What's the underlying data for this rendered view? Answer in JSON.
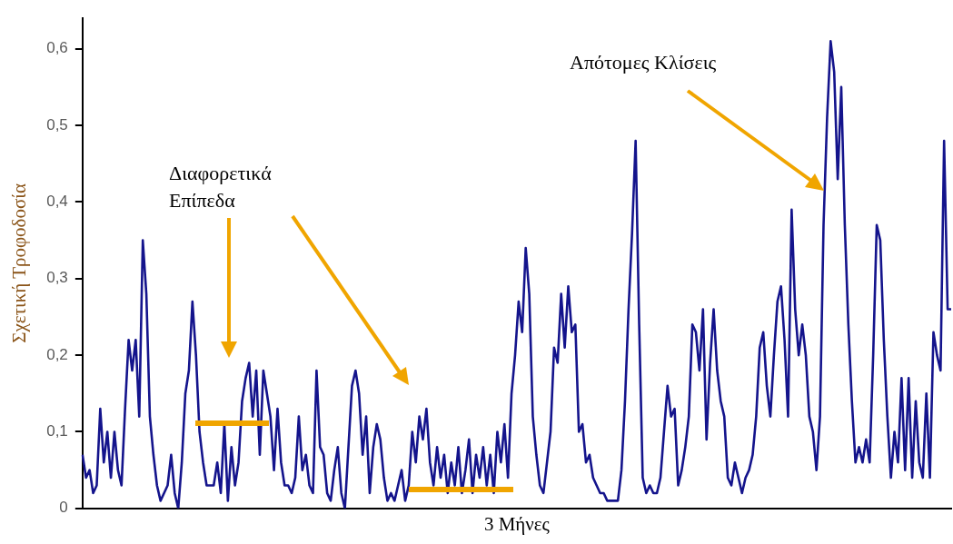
{
  "chart_data": {
    "type": "line",
    "xlabel": "3 Μήνες",
    "ylabel": "Σχετική Τροφοδοσία",
    "annotations": [
      "Διαφορετικά Επίπεδα",
      "Απότομες Κλίσεις"
    ],
    "categories": [
      null,
      null,
      null,
      null,
      null,
      null,
      null,
      null,
      null,
      null,
      null,
      null,
      null,
      null,
      null,
      null,
      null,
      null,
      null,
      null,
      null,
      null,
      null,
      null,
      null,
      null,
      null,
      null,
      null,
      null,
      null,
      null,
      null,
      null,
      null,
      null,
      null,
      null,
      null,
      null,
      null,
      null,
      null,
      null,
      null,
      null,
      null,
      null,
      null,
      null,
      null,
      null,
      null,
      null,
      null,
      null,
      null,
      null,
      null,
      null,
      null,
      null,
      null,
      null,
      null,
      null,
      null,
      null,
      null,
      null,
      null,
      null,
      null,
      null,
      null,
      null,
      null,
      null,
      null,
      null,
      null,
      null,
      null,
      null,
      null,
      null,
      null,
      null,
      null,
      null,
      null,
      null,
      null,
      null,
      null,
      null,
      null,
      null,
      null,
      null,
      null,
      null,
      null,
      null,
      null,
      null,
      null,
      null,
      null,
      null,
      null,
      null,
      null,
      null,
      null,
      null,
      null,
      null,
      null,
      null,
      null,
      null,
      null,
      null,
      null,
      null,
      null,
      null,
      null,
      null,
      null,
      null,
      null,
      null,
      null,
      null,
      null,
      null,
      null,
      null,
      null,
      null,
      null,
      null,
      null,
      null,
      null,
      null,
      null,
      null,
      null,
      null,
      null,
      null,
      null,
      null,
      null,
      null,
      null,
      null,
      null,
      null,
      null,
      null,
      null,
      null,
      null,
      null,
      null,
      null,
      null,
      null,
      null,
      null,
      null,
      null,
      null,
      null,
      null,
      null,
      null,
      null,
      null,
      null,
      null,
      null,
      null,
      null,
      null,
      null,
      null,
      null,
      null,
      null,
      null,
      null,
      null,
      null,
      null,
      null,
      null,
      null,
      null,
      null,
      null,
      null,
      null,
      null,
      null,
      null,
      null,
      null,
      null,
      null,
      null,
      null,
      null,
      null,
      null,
      null,
      null,
      null,
      null,
      null,
      null,
      null,
      null,
      null,
      null,
      null,
      null,
      null,
      null,
      null,
      null,
      null,
      null,
      null,
      null,
      null,
      null,
      null,
      null,
      null,
      null,
      null
    ],
    "series": [
      {
        "color": "#14148c",
        "values": [
          0.07,
          0.04,
          0.05,
          0.02,
          0.03,
          0.13,
          0.06,
          0.1,
          0.04,
          0.1,
          0.05,
          0.03,
          0.13,
          0.22,
          0.18,
          0.22,
          0.12,
          0.35,
          0.28,
          0.12,
          0.07,
          0.03,
          0.01,
          0.02,
          0.03,
          0.07,
          0.02,
          0.0,
          0.06,
          0.15,
          0.18,
          0.27,
          0.2,
          0.1,
          0.06,
          0.03,
          0.03,
          0.03,
          0.06,
          0.02,
          0.11,
          0.01,
          0.08,
          0.03,
          0.06,
          0.14,
          0.17,
          0.19,
          0.12,
          0.18,
          0.07,
          0.18,
          0.15,
          0.12,
          0.05,
          0.13,
          0.06,
          0.03,
          0.03,
          0.02,
          0.04,
          0.12,
          0.05,
          0.07,
          0.03,
          0.02,
          0.18,
          0.08,
          0.07,
          0.02,
          0.01,
          0.05,
          0.08,
          0.02,
          0.0,
          0.08,
          0.16,
          0.18,
          0.15,
          0.07,
          0.12,
          0.02,
          0.08,
          0.11,
          0.09,
          0.04,
          0.01,
          0.02,
          0.01,
          0.03,
          0.05,
          0.01,
          0.03,
          0.1,
          0.06,
          0.12,
          0.09,
          0.13,
          0.06,
          0.03,
          0.08,
          0.04,
          0.07,
          0.02,
          0.06,
          0.03,
          0.08,
          0.02,
          0.05,
          0.09,
          0.02,
          0.07,
          0.04,
          0.08,
          0.03,
          0.07,
          0.02,
          0.1,
          0.06,
          0.11,
          0.04,
          0.15,
          0.2,
          0.27,
          0.23,
          0.34,
          0.28,
          0.12,
          0.07,
          0.03,
          0.02,
          0.06,
          0.1,
          0.21,
          0.19,
          0.28,
          0.21,
          0.29,
          0.23,
          0.24,
          0.1,
          0.11,
          0.06,
          0.07,
          0.04,
          0.03,
          0.02,
          0.02,
          0.01,
          0.01,
          0.01,
          0.01,
          0.05,
          0.14,
          0.26,
          0.36,
          0.48,
          0.24,
          0.04,
          0.02,
          0.03,
          0.02,
          0.02,
          0.04,
          0.1,
          0.16,
          0.12,
          0.13,
          0.03,
          0.05,
          0.08,
          0.12,
          0.24,
          0.23,
          0.18,
          0.26,
          0.09,
          0.19,
          0.26,
          0.18,
          0.14,
          0.12,
          0.04,
          0.03,
          0.06,
          0.04,
          0.02,
          0.04,
          0.05,
          0.07,
          0.12,
          0.21,
          0.23,
          0.16,
          0.12,
          0.2,
          0.27,
          0.29,
          0.22,
          0.12,
          0.39,
          0.26,
          0.2,
          0.24,
          0.2,
          0.12,
          0.1,
          0.05,
          0.12,
          0.37,
          0.51,
          0.61,
          0.57,
          0.43,
          0.55,
          0.37,
          0.24,
          0.14,
          0.06,
          0.08,
          0.06,
          0.09,
          0.06,
          0.2,
          0.37,
          0.35,
          0.22,
          0.12,
          0.04,
          0.1,
          0.06,
          0.17,
          0.05,
          0.17,
          0.04,
          0.14,
          0.06,
          0.04,
          0.15,
          0.04,
          0.23,
          0.2,
          0.18,
          0.48,
          0.26,
          0.26
        ]
      }
    ],
    "ylim": [
      0,
      0.64
    ],
    "yticks": [
      0,
      {
        "value": 0.1,
        "label": "0,1"
      },
      {
        "value": 0.2,
        "label": "0,2"
      },
      {
        "value": 0.3,
        "label": "0,3"
      },
      {
        "value": 0.4,
        "label": "0,4"
      },
      {
        "value": 0.5,
        "label": "0,5"
      },
      {
        "value": 0.6,
        "label": "0,6"
      }
    ],
    "tick_labels": "y"
  }
}
